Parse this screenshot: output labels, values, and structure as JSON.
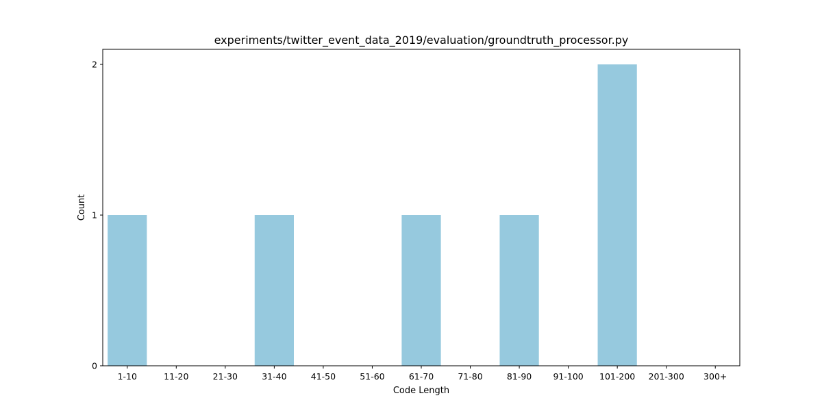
{
  "chart_data": {
    "type": "bar",
    "title": "experiments/twitter_event_data_2019/evaluation/groundtruth_processor.py",
    "xlabel": "Code Length",
    "ylabel": "Count",
    "categories": [
      "1-10",
      "11-20",
      "21-30",
      "31-40",
      "41-50",
      "51-60",
      "61-70",
      "71-80",
      "81-90",
      "91-100",
      "101-200",
      "201-300",
      "300+"
    ],
    "values": [
      1,
      0,
      0,
      1,
      0,
      0,
      1,
      0,
      1,
      0,
      2,
      0,
      0
    ],
    "yticks": [
      0,
      1,
      2
    ],
    "ylim": [
      0,
      2.1
    ],
    "grid": false,
    "bar_color": "#96c9de"
  }
}
